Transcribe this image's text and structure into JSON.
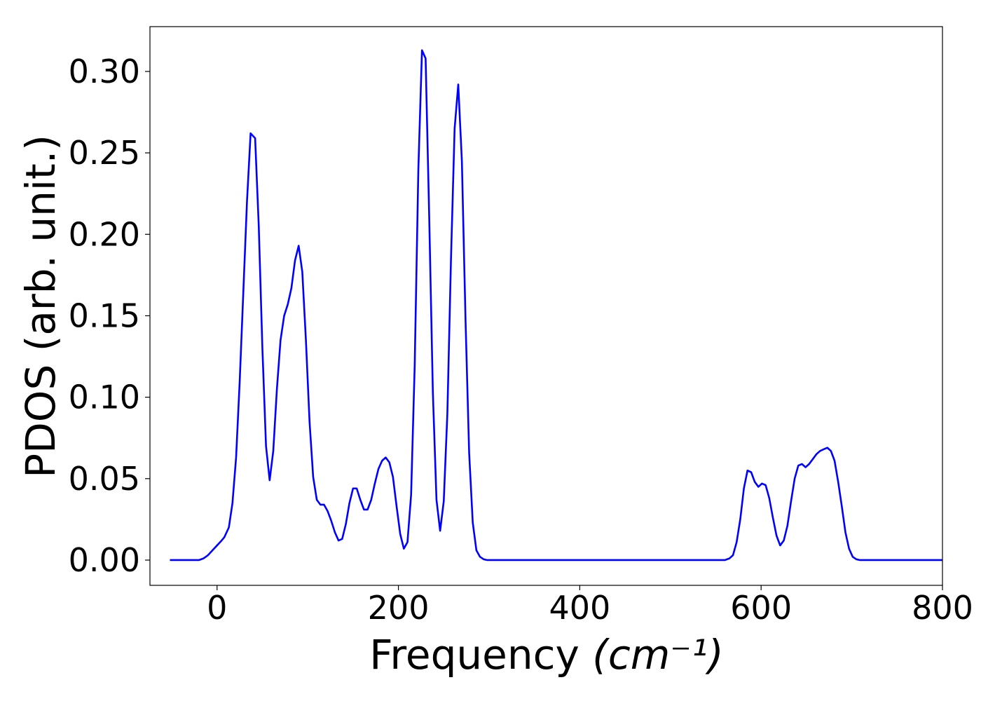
{
  "chart_data": {
    "type": "line",
    "title": "",
    "xlabel": "Frequency",
    "xlabel_unit": "(cm⁻¹)",
    "ylabel": "PDOS (arb. unit.)",
    "xlim": [
      -74,
      800
    ],
    "ylim": [
      -0.0155,
      0.3275
    ],
    "xticks": [
      0,
      200,
      400,
      600,
      800
    ],
    "xtick_labels": [
      "0",
      "200",
      "400",
      "600",
      "800"
    ],
    "yticks": [
      0.0,
      0.05,
      0.1,
      0.15,
      0.2,
      0.25,
      0.3
    ],
    "ytick_labels": [
      "0.00",
      "0.05",
      "0.10",
      "0.15",
      "0.20",
      "0.25",
      "0.30"
    ],
    "grid": false,
    "legend": "none",
    "series": [
      {
        "color": "#0000ff",
        "points": [
          [
            -52,
            0
          ],
          [
            -20,
            0
          ],
          [
            -15,
            0.001
          ],
          [
            -10,
            0.003
          ],
          [
            -5,
            0.006
          ],
          [
            0,
            0.009
          ],
          [
            5,
            0.012
          ],
          [
            8,
            0.014
          ],
          [
            13,
            0.02
          ],
          [
            17,
            0.035
          ],
          [
            21,
            0.063
          ],
          [
            25,
            0.11
          ],
          [
            29,
            0.165
          ],
          [
            33,
            0.22
          ],
          [
            37,
            0.262
          ],
          [
            42,
            0.259
          ],
          [
            46,
            0.205
          ],
          [
            50,
            0.13
          ],
          [
            54,
            0.07
          ],
          [
            58,
            0.049
          ],
          [
            62,
            0.067
          ],
          [
            66,
            0.105
          ],
          [
            70,
            0.135
          ],
          [
            74,
            0.15
          ],
          [
            78,
            0.157
          ],
          [
            82,
            0.167
          ],
          [
            86,
            0.184
          ],
          [
            90,
            0.193
          ],
          [
            94,
            0.177
          ],
          [
            98,
            0.135
          ],
          [
            102,
            0.085
          ],
          [
            106,
            0.051
          ],
          [
            110,
            0.037
          ],
          [
            114,
            0.034
          ],
          [
            118,
            0.034
          ],
          [
            122,
            0.03
          ],
          [
            126,
            0.024
          ],
          [
            130,
            0.017
          ],
          [
            134,
            0.012
          ],
          [
            138,
            0.013
          ],
          [
            142,
            0.022
          ],
          [
            146,
            0.035
          ],
          [
            150,
            0.044
          ],
          [
            154,
            0.044
          ],
          [
            158,
            0.037
          ],
          [
            162,
            0.031
          ],
          [
            166,
            0.031
          ],
          [
            170,
            0.037
          ],
          [
            174,
            0.047
          ],
          [
            178,
            0.056
          ],
          [
            182,
            0.061
          ],
          [
            186,
            0.063
          ],
          [
            190,
            0.06
          ],
          [
            194,
            0.051
          ],
          [
            198,
            0.033
          ],
          [
            202,
            0.016
          ],
          [
            206,
            0.007
          ],
          [
            210,
            0.011
          ],
          [
            214,
            0.04
          ],
          [
            218,
            0.12
          ],
          [
            222,
            0.24
          ],
          [
            226,
            0.313
          ],
          [
            230,
            0.308
          ],
          [
            234,
            0.21
          ],
          [
            238,
            0.103
          ],
          [
            242,
            0.037
          ],
          [
            246,
            0.018
          ],
          [
            250,
            0.036
          ],
          [
            254,
            0.09
          ],
          [
            258,
            0.185
          ],
          [
            262,
            0.265
          ],
          [
            266,
            0.292
          ],
          [
            270,
            0.245
          ],
          [
            274,
            0.148
          ],
          [
            278,
            0.066
          ],
          [
            282,
            0.023
          ],
          [
            286,
            0.006
          ],
          [
            290,
            0.002
          ],
          [
            294,
            0.0005
          ],
          [
            298,
            0
          ],
          [
            400,
            0
          ],
          [
            500,
            0
          ],
          [
            560,
            0
          ],
          [
            565,
            0.001
          ],
          [
            569,
            0.003
          ],
          [
            573,
            0.011
          ],
          [
            577,
            0.025
          ],
          [
            581,
            0.044
          ],
          [
            585,
            0.055
          ],
          [
            589,
            0.054
          ],
          [
            593,
            0.048
          ],
          [
            597,
            0.045
          ],
          [
            601,
            0.047
          ],
          [
            605,
            0.046
          ],
          [
            609,
            0.038
          ],
          [
            613,
            0.026
          ],
          [
            617,
            0.015
          ],
          [
            621,
            0.009
          ],
          [
            625,
            0.012
          ],
          [
            629,
            0.021
          ],
          [
            633,
            0.036
          ],
          [
            637,
            0.05
          ],
          [
            641,
            0.058
          ],
          [
            645,
            0.059
          ],
          [
            649,
            0.057
          ],
          [
            653,
            0.059
          ],
          [
            657,
            0.062
          ],
          [
            661,
            0.065
          ],
          [
            665,
            0.067
          ],
          [
            669,
            0.068
          ],
          [
            673,
            0.069
          ],
          [
            677,
            0.067
          ],
          [
            681,
            0.061
          ],
          [
            685,
            0.048
          ],
          [
            689,
            0.033
          ],
          [
            693,
            0.017
          ],
          [
            697,
            0.007
          ],
          [
            701,
            0.002
          ],
          [
            705,
            0.0005
          ],
          [
            709,
            0
          ],
          [
            760,
            0
          ],
          [
            800,
            0
          ]
        ]
      }
    ]
  }
}
